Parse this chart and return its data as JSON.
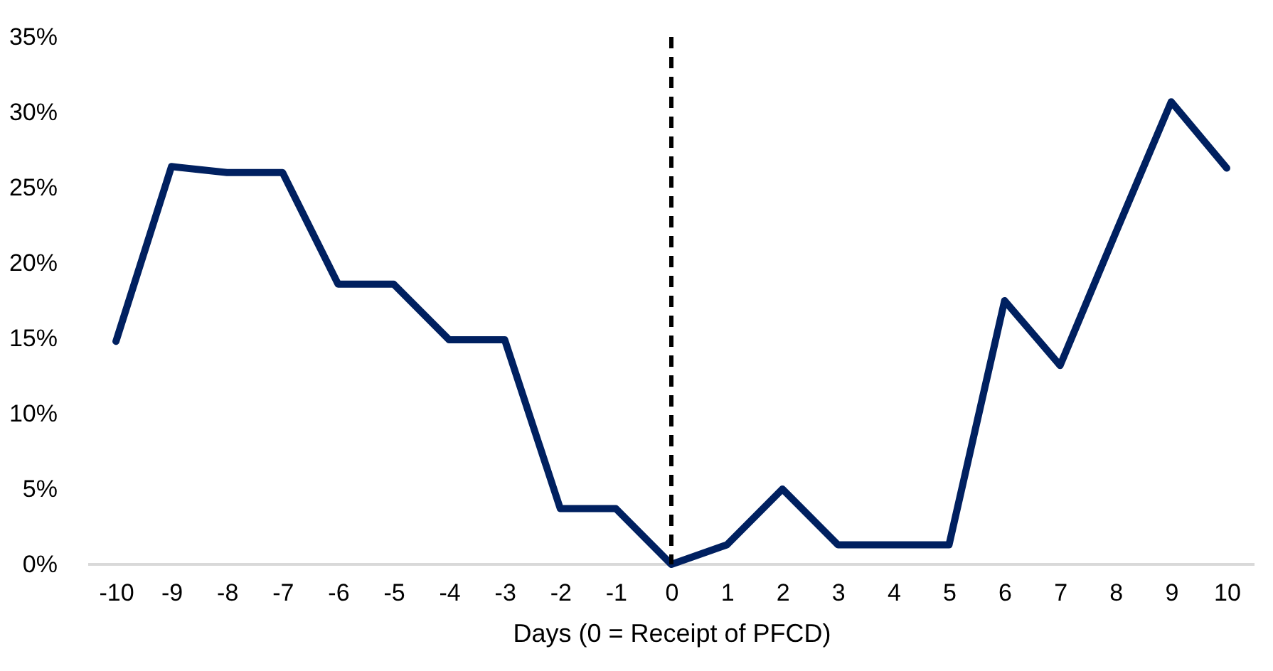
{
  "chart_data": {
    "type": "line",
    "xlabel": "Days (0 = Receipt of PFCD)",
    "categories": [
      "-10",
      "-9",
      "-8",
      "-7",
      "-6",
      "-5",
      "-4",
      "-3",
      "-2",
      "-1",
      "0",
      "1",
      "2",
      "3",
      "4",
      "5",
      "6",
      "7",
      "8",
      "9",
      "10"
    ],
    "series": [
      {
        "color": "#002060",
        "values": [
          14.8,
          26.4,
          26.0,
          26.0,
          18.6,
          18.6,
          14.9,
          14.9,
          3.7,
          3.7,
          0,
          1.3,
          5.0,
          1.3,
          1.3,
          1.3,
          17.5,
          13.2,
          22.0,
          30.7,
          26.3
        ]
      }
    ],
    "ylim": [
      0,
      35
    ],
    "yticks": [
      {
        "value": 0,
        "label": "0%"
      },
      {
        "value": 5,
        "label": "5%"
      },
      {
        "value": 10,
        "label": "10%"
      },
      {
        "value": 15,
        "label": "15%"
      },
      {
        "value": 20,
        "label": "20%"
      },
      {
        "value": 25,
        "label": "25%"
      },
      {
        "value": 30,
        "label": "30%"
      },
      {
        "value": 35,
        "label": "35%"
      }
    ],
    "ref_lines": [
      {
        "axis": "x",
        "value": "0",
        "color": "#000000",
        "line_style": "dashed"
      }
    ],
    "grid": false,
    "marker": "none",
    "line_style": "solid"
  }
}
